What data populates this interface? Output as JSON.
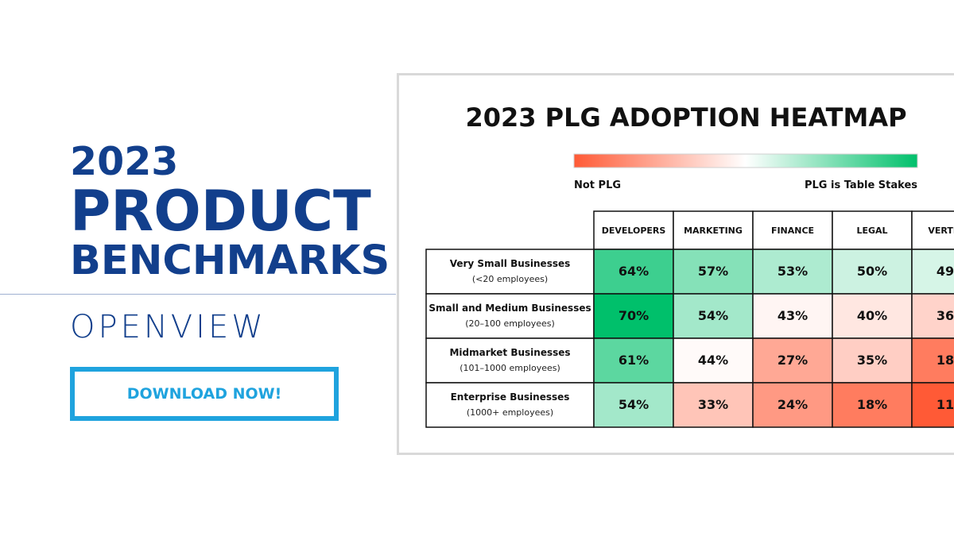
{
  "promo": {
    "year": "2023",
    "line1": "PRODUCT",
    "line2": "BENCHMARKS",
    "logo": "OPENVIEW",
    "cta_label": "DOWNLOAD NOW!",
    "brand_color": "#123f8c",
    "accent_color": "#1fa3de"
  },
  "chart_data": {
    "type": "heatmap",
    "title": "2023 PLG ADOPTION HEATMAP",
    "legend": {
      "low_label": "Not PLG",
      "high_label": "PLG is Table Stakes",
      "low_color": "#ff5a36",
      "mid_color": "#ffffff",
      "high_color": "#00c06b"
    },
    "columns": [
      "DEVELOPERS",
      "MARKETING",
      "FINANCE",
      "LEGAL",
      "VERTICAL"
    ],
    "rows": [
      {
        "name": "Very Small Businesses",
        "sub": "(<20 employees)",
        "values": [
          64,
          57,
          53,
          50,
          49
        ]
      },
      {
        "name": "Small and Medium Businesses",
        "sub": "(20–100 employees)",
        "values": [
          70,
          54,
          43,
          40,
          36
        ]
      },
      {
        "name": "Midmarket Businesses",
        "sub": "(101–1000 employees)",
        "values": [
          61,
          44,
          27,
          35,
          18
        ]
      },
      {
        "name": "Enterprise Businesses",
        "sub": "(1000+ employees)",
        "values": [
          54,
          33,
          24,
          18,
          11
        ]
      }
    ],
    "value_suffix": "%"
  }
}
